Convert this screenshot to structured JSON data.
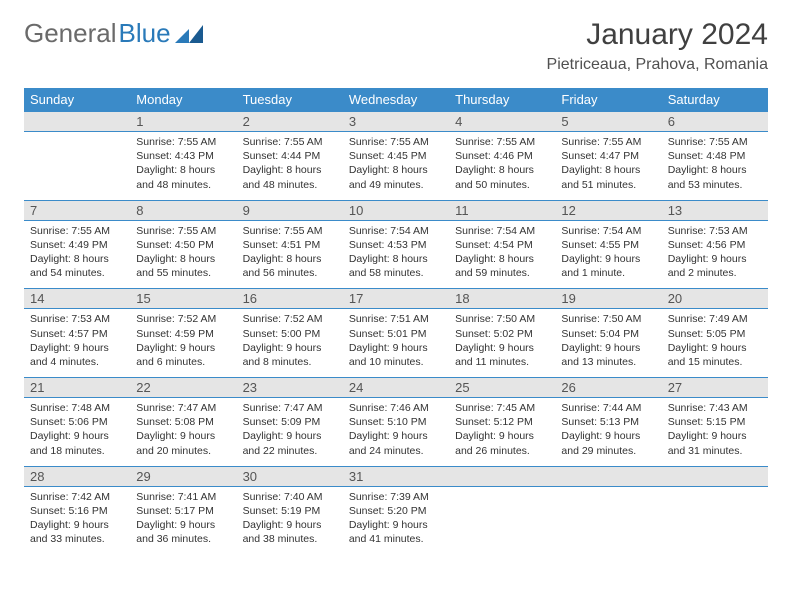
{
  "logo": {
    "text_gray": "General",
    "text_blue": "Blue"
  },
  "title": "January 2024",
  "location": "Pietriceaua, Prahova, Romania",
  "colors": {
    "header_bg": "#3b8bc9",
    "header_text": "#ffffff",
    "daynum_bg": "#e5e5e5",
    "rule": "#3b8bc9",
    "logo_gray": "#6a6a6a",
    "logo_blue": "#2a7ab9"
  },
  "weekdays": [
    "Sunday",
    "Monday",
    "Tuesday",
    "Wednesday",
    "Thursday",
    "Friday",
    "Saturday"
  ],
  "weeks": [
    [
      null,
      {
        "n": "1",
        "sunrise": "Sunrise: 7:55 AM",
        "sunset": "Sunset: 4:43 PM",
        "daylight": "Daylight: 8 hours and 48 minutes."
      },
      {
        "n": "2",
        "sunrise": "Sunrise: 7:55 AM",
        "sunset": "Sunset: 4:44 PM",
        "daylight": "Daylight: 8 hours and 48 minutes."
      },
      {
        "n": "3",
        "sunrise": "Sunrise: 7:55 AM",
        "sunset": "Sunset: 4:45 PM",
        "daylight": "Daylight: 8 hours and 49 minutes."
      },
      {
        "n": "4",
        "sunrise": "Sunrise: 7:55 AM",
        "sunset": "Sunset: 4:46 PM",
        "daylight": "Daylight: 8 hours and 50 minutes."
      },
      {
        "n": "5",
        "sunrise": "Sunrise: 7:55 AM",
        "sunset": "Sunset: 4:47 PM",
        "daylight": "Daylight: 8 hours and 51 minutes."
      },
      {
        "n": "6",
        "sunrise": "Sunrise: 7:55 AM",
        "sunset": "Sunset: 4:48 PM",
        "daylight": "Daylight: 8 hours and 53 minutes."
      }
    ],
    [
      {
        "n": "7",
        "sunrise": "Sunrise: 7:55 AM",
        "sunset": "Sunset: 4:49 PM",
        "daylight": "Daylight: 8 hours and 54 minutes."
      },
      {
        "n": "8",
        "sunrise": "Sunrise: 7:55 AM",
        "sunset": "Sunset: 4:50 PM",
        "daylight": "Daylight: 8 hours and 55 minutes."
      },
      {
        "n": "9",
        "sunrise": "Sunrise: 7:55 AM",
        "sunset": "Sunset: 4:51 PM",
        "daylight": "Daylight: 8 hours and 56 minutes."
      },
      {
        "n": "10",
        "sunrise": "Sunrise: 7:54 AM",
        "sunset": "Sunset: 4:53 PM",
        "daylight": "Daylight: 8 hours and 58 minutes."
      },
      {
        "n": "11",
        "sunrise": "Sunrise: 7:54 AM",
        "sunset": "Sunset: 4:54 PM",
        "daylight": "Daylight: 8 hours and 59 minutes."
      },
      {
        "n": "12",
        "sunrise": "Sunrise: 7:54 AM",
        "sunset": "Sunset: 4:55 PM",
        "daylight": "Daylight: 9 hours and 1 minute."
      },
      {
        "n": "13",
        "sunrise": "Sunrise: 7:53 AM",
        "sunset": "Sunset: 4:56 PM",
        "daylight": "Daylight: 9 hours and 2 minutes."
      }
    ],
    [
      {
        "n": "14",
        "sunrise": "Sunrise: 7:53 AM",
        "sunset": "Sunset: 4:57 PM",
        "daylight": "Daylight: 9 hours and 4 minutes."
      },
      {
        "n": "15",
        "sunrise": "Sunrise: 7:52 AM",
        "sunset": "Sunset: 4:59 PM",
        "daylight": "Daylight: 9 hours and 6 minutes."
      },
      {
        "n": "16",
        "sunrise": "Sunrise: 7:52 AM",
        "sunset": "Sunset: 5:00 PM",
        "daylight": "Daylight: 9 hours and 8 minutes."
      },
      {
        "n": "17",
        "sunrise": "Sunrise: 7:51 AM",
        "sunset": "Sunset: 5:01 PM",
        "daylight": "Daylight: 9 hours and 10 minutes."
      },
      {
        "n": "18",
        "sunrise": "Sunrise: 7:50 AM",
        "sunset": "Sunset: 5:02 PM",
        "daylight": "Daylight: 9 hours and 11 minutes."
      },
      {
        "n": "19",
        "sunrise": "Sunrise: 7:50 AM",
        "sunset": "Sunset: 5:04 PM",
        "daylight": "Daylight: 9 hours and 13 minutes."
      },
      {
        "n": "20",
        "sunrise": "Sunrise: 7:49 AM",
        "sunset": "Sunset: 5:05 PM",
        "daylight": "Daylight: 9 hours and 15 minutes."
      }
    ],
    [
      {
        "n": "21",
        "sunrise": "Sunrise: 7:48 AM",
        "sunset": "Sunset: 5:06 PM",
        "daylight": "Daylight: 9 hours and 18 minutes."
      },
      {
        "n": "22",
        "sunrise": "Sunrise: 7:47 AM",
        "sunset": "Sunset: 5:08 PM",
        "daylight": "Daylight: 9 hours and 20 minutes."
      },
      {
        "n": "23",
        "sunrise": "Sunrise: 7:47 AM",
        "sunset": "Sunset: 5:09 PM",
        "daylight": "Daylight: 9 hours and 22 minutes."
      },
      {
        "n": "24",
        "sunrise": "Sunrise: 7:46 AM",
        "sunset": "Sunset: 5:10 PM",
        "daylight": "Daylight: 9 hours and 24 minutes."
      },
      {
        "n": "25",
        "sunrise": "Sunrise: 7:45 AM",
        "sunset": "Sunset: 5:12 PM",
        "daylight": "Daylight: 9 hours and 26 minutes."
      },
      {
        "n": "26",
        "sunrise": "Sunrise: 7:44 AM",
        "sunset": "Sunset: 5:13 PM",
        "daylight": "Daylight: 9 hours and 29 minutes."
      },
      {
        "n": "27",
        "sunrise": "Sunrise: 7:43 AM",
        "sunset": "Sunset: 5:15 PM",
        "daylight": "Daylight: 9 hours and 31 minutes."
      }
    ],
    [
      {
        "n": "28",
        "sunrise": "Sunrise: 7:42 AM",
        "sunset": "Sunset: 5:16 PM",
        "daylight": "Daylight: 9 hours and 33 minutes."
      },
      {
        "n": "29",
        "sunrise": "Sunrise: 7:41 AM",
        "sunset": "Sunset: 5:17 PM",
        "daylight": "Daylight: 9 hours and 36 minutes."
      },
      {
        "n": "30",
        "sunrise": "Sunrise: 7:40 AM",
        "sunset": "Sunset: 5:19 PM",
        "daylight": "Daylight: 9 hours and 38 minutes."
      },
      {
        "n": "31",
        "sunrise": "Sunrise: 7:39 AM",
        "sunset": "Sunset: 5:20 PM",
        "daylight": "Daylight: 9 hours and 41 minutes."
      },
      null,
      null,
      null
    ]
  ]
}
